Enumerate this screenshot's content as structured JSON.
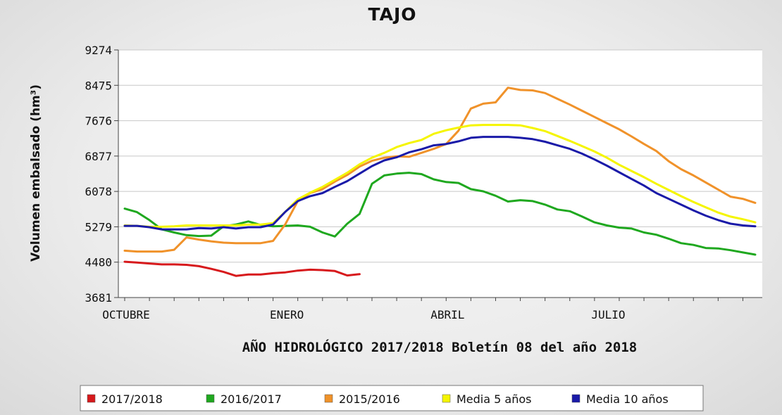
{
  "chart_data": {
    "type": "line",
    "title": "TAJO",
    "subtitle": "AÑO HIDROLÓGICO 2017/2018 Boletín 08 del año 2018",
    "ylabel": "Volumen embalsado (hm³)",
    "xlabel": "",
    "ylim": [
      3681,
      9274
    ],
    "yticks": [
      3681,
      4480,
      5279,
      6078,
      6877,
      7676,
      8475,
      9274
    ],
    "x_tick_labels": [
      {
        "label": "OCTUBRE",
        "week": 0
      },
      {
        "label": "ENERO",
        "week": 13
      },
      {
        "label": "ABRIL",
        "week": 26
      },
      {
        "label": "JULIO",
        "week": 39
      }
    ],
    "weeks": 52,
    "grid": true,
    "legend_position": "bottom",
    "series": [
      {
        "name": "2017/2018",
        "color": "#d7191c",
        "values": [
          4490,
          4470,
          4450,
          4430,
          4430,
          4420,
          4390,
          4330,
          4260,
          4170,
          4200,
          4200,
          4230,
          4250,
          4290,
          4310,
          4300,
          4280,
          4180,
          4210
        ]
      },
      {
        "name": "2016/2017",
        "color": "#1fa81f",
        "values": [
          5690,
          5610,
          5430,
          5220,
          5150,
          5090,
          5070,
          5080,
          5290,
          5330,
          5400,
          5320,
          5290,
          5300,
          5310,
          5280,
          5150,
          5060,
          5350,
          5570,
          6250,
          6440,
          6480,
          6500,
          6470,
          6350,
          6290,
          6270,
          6130,
          6080,
          5980,
          5850,
          5880,
          5860,
          5780,
          5670,
          5630,
          5510,
          5380,
          5310,
          5260,
          5240,
          5150,
          5100,
          5010,
          4910,
          4870,
          4800,
          4790,
          4750,
          4700,
          4650
        ]
      },
      {
        "name": "2015/2016",
        "color": "#f0922a",
        "values": [
          4740,
          4720,
          4720,
          4720,
          4760,
          5040,
          4990,
          4950,
          4920,
          4910,
          4910,
          4910,
          4960,
          5340,
          5860,
          6040,
          6130,
          6300,
          6450,
          6640,
          6770,
          6840,
          6870,
          6860,
          6950,
          7040,
          7150,
          7450,
          7950,
          8060,
          8090,
          8420,
          8370,
          8360,
          8300,
          8170,
          8040,
          7900,
          7760,
          7620,
          7480,
          7320,
          7150,
          6990,
          6760,
          6580,
          6440,
          6280,
          6120,
          5960,
          5910,
          5820
        ]
      },
      {
        "name": "Media 5 años",
        "color": "#f5f500",
        "values": [
          5310,
          5300,
          5280,
          5280,
          5290,
          5310,
          5310,
          5310,
          5310,
          5310,
          5330,
          5330,
          5360,
          5620,
          5900,
          6050,
          6180,
          6340,
          6500,
          6690,
          6840,
          6950,
          7080,
          7170,
          7240,
          7380,
          7460,
          7520,
          7570,
          7580,
          7580,
          7580,
          7570,
          7510,
          7440,
          7330,
          7220,
          7100,
          6980,
          6840,
          6680,
          6540,
          6400,
          6250,
          6110,
          5970,
          5840,
          5720,
          5600,
          5510,
          5450,
          5380
        ]
      },
      {
        "name": "Media 10 años",
        "color": "#1a1aa8",
        "values": [
          5300,
          5300,
          5270,
          5220,
          5220,
          5220,
          5250,
          5240,
          5270,
          5240,
          5270,
          5270,
          5330,
          5620,
          5860,
          5970,
          6040,
          6180,
          6310,
          6480,
          6650,
          6780,
          6850,
          6960,
          7030,
          7120,
          7150,
          7210,
          7290,
          7310,
          7310,
          7310,
          7290,
          7260,
          7200,
          7120,
          7040,
          6930,
          6800,
          6660,
          6510,
          6360,
          6210,
          6040,
          5910,
          5780,
          5650,
          5530,
          5430,
          5350,
          5310,
          5290
        ]
      }
    ]
  }
}
